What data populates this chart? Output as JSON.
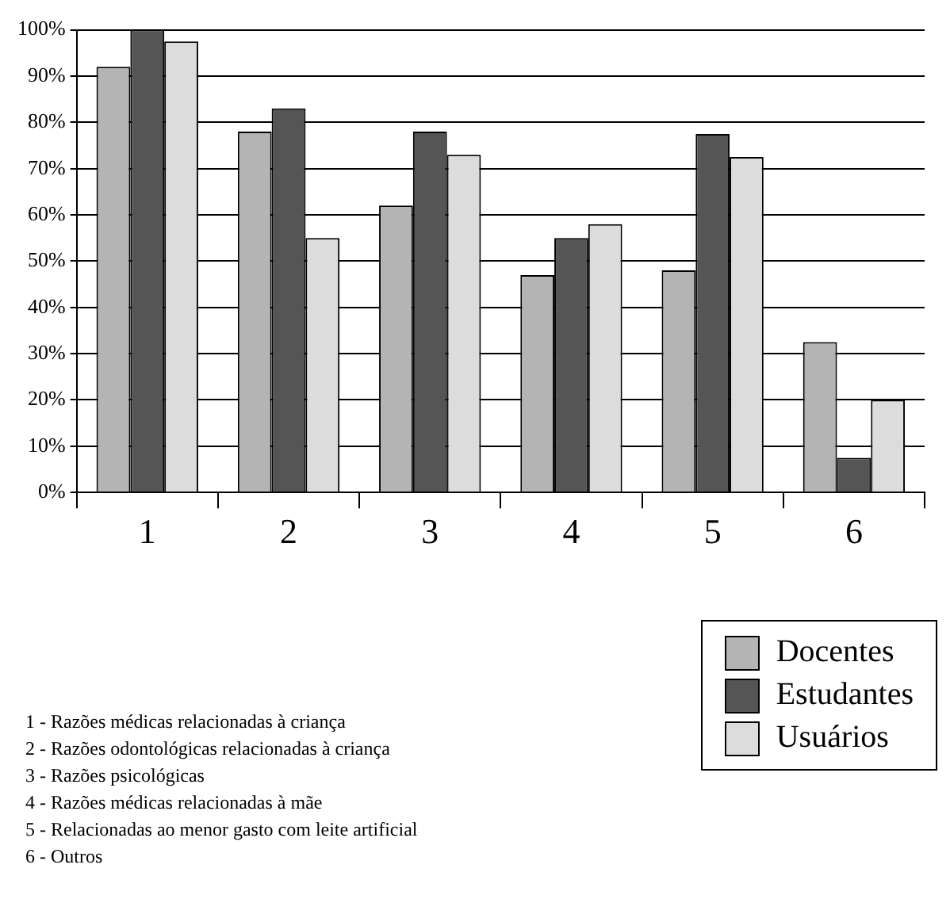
{
  "chart_data": {
    "type": "bar",
    "categories": [
      "1",
      "2",
      "3",
      "4",
      "5",
      "6"
    ],
    "series": [
      {
        "name": "Docentes",
        "color": "#b4b4b4",
        "values": [
          92,
          78,
          62,
          47,
          48,
          32.5
        ]
      },
      {
        "name": "Estudantes",
        "color": "#555555",
        "values": [
          100,
          83,
          78,
          55,
          77.5,
          7.5
        ]
      },
      {
        "name": "Usuários",
        "color": "#dcdcdc",
        "values": [
          97.5,
          55,
          73,
          58,
          72.5,
          20
        ]
      }
    ],
    "ylim": [
      0,
      100
    ],
    "yticks": [
      {
        "value": 0,
        "label": "0%"
      },
      {
        "value": 10,
        "label": "10%"
      },
      {
        "value": 20,
        "label": "20%"
      },
      {
        "value": 30,
        "label": "30%"
      },
      {
        "value": 40,
        "label": "40%"
      },
      {
        "value": 50,
        "label": "50%"
      },
      {
        "value": 60,
        "label": "60%"
      },
      {
        "value": 70,
        "label": "70%"
      },
      {
        "value": 80,
        "label": "80%"
      },
      {
        "value": 90,
        "label": "90%"
      },
      {
        "value": 100,
        "label": "100%"
      }
    ],
    "grid": "y",
    "legend": "bottom right",
    "annotations": [
      "1 - Razões médicas relacionadas à criança",
      "2 - Razões odontológicas relacionadas à criança",
      "3 - Razões psicológicas",
      "4 - Razões médicas relacionadas à mãe",
      "5 - Relacionadas ao menor gasto com leite artificial",
      "6 - Outros"
    ]
  }
}
